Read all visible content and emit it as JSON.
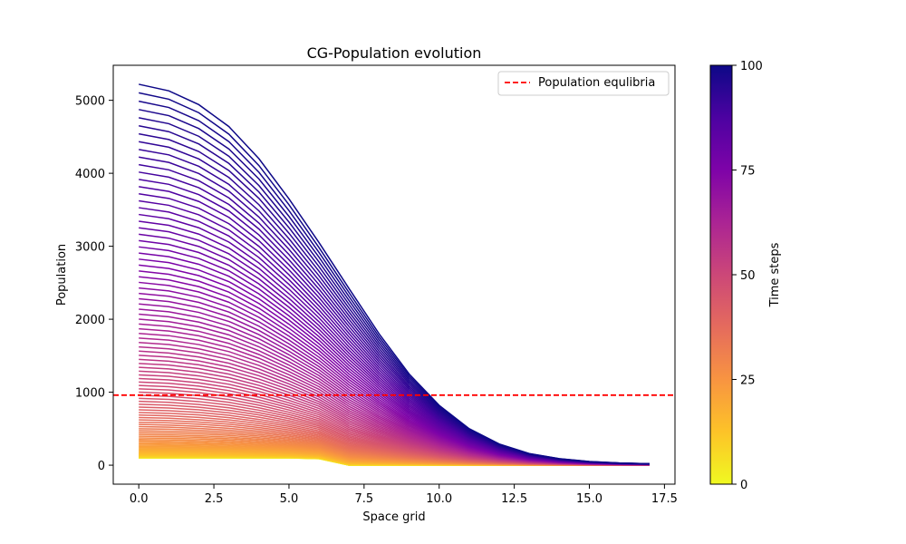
{
  "chart_data": {
    "type": "line",
    "title": "CG-Population evolution",
    "xlabel": "Space grid",
    "ylabel": "Population",
    "xlim": [
      -0.85,
      17.85
    ],
    "ylim": [
      -260,
      5480
    ],
    "xticks": [
      0.0,
      2.5,
      5.0,
      7.5,
      10.0,
      12.5,
      15.0,
      17.5
    ],
    "xtick_labels": [
      "0.0",
      "2.5",
      "5.0",
      "7.5",
      "10.0",
      "12.5",
      "15.0",
      "17.5"
    ],
    "yticks": [
      0,
      1000,
      2000,
      3000,
      4000,
      5000
    ],
    "ytick_labels": [
      "0",
      "1000",
      "2000",
      "3000",
      "4000",
      "5000"
    ],
    "grid": false,
    "legend": {
      "location": "upper right",
      "entries": [
        "Population equlibria"
      ]
    },
    "equilibrium_line": {
      "y": 960,
      "color": "#ff0000",
      "style": "dashed",
      "label": "Population equlibria"
    },
    "series_description": "101 curves, one per time step (0 to 100), colored by time step with the plasma colormap",
    "time_steps": {
      "start": 0,
      "end": 100
    },
    "x": [
      0,
      1,
      2,
      3,
      4,
      5,
      6,
      7,
      8,
      9,
      10,
      11,
      12,
      13,
      14,
      15,
      16,
      17
    ],
    "first_step_values": [
      100,
      100,
      100,
      100,
      100,
      100,
      90,
      0,
      0,
      0,
      0,
      0,
      0,
      0,
      0,
      0,
      0,
      0
    ],
    "last_step_values": [
      5220,
      5130,
      4940,
      4640,
      4200,
      3650,
      3050,
      2420,
      1800,
      1250,
      820,
      500,
      290,
      160,
      90,
      50,
      30,
      20
    ],
    "colorbar": {
      "label": "Time steps",
      "colormap": "plasma",
      "range": [
        0,
        100
      ],
      "ticks": [
        0,
        25,
        50,
        75,
        100
      ],
      "tick_labels": [
        "0",
        "25",
        "50",
        "75",
        "100"
      ]
    }
  }
}
